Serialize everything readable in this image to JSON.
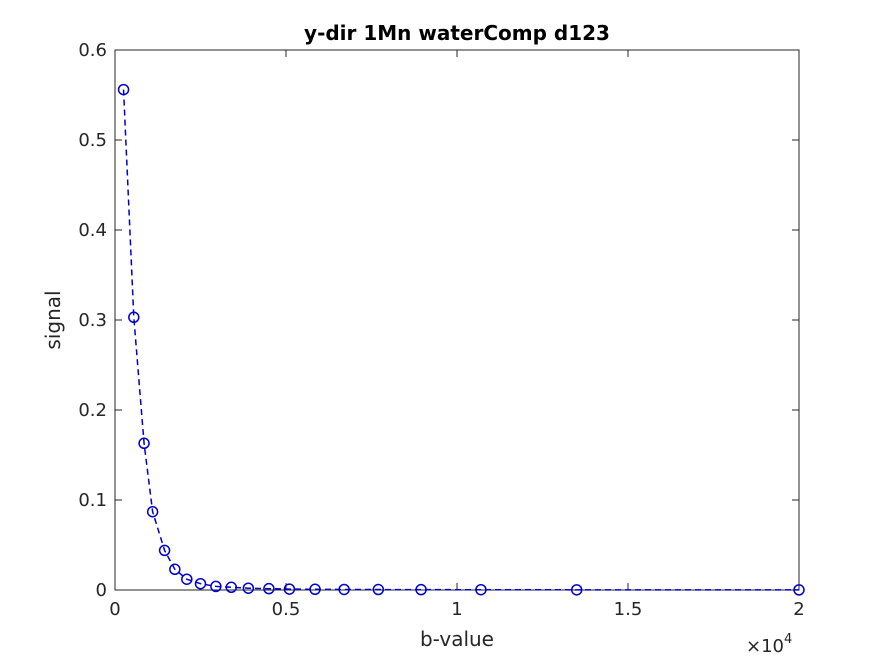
{
  "chart_data": {
    "type": "line",
    "title": "y-dir 1Mn waterComp d123",
    "xlabel": "b-value",
    "ylabel": "signal",
    "xlim": [
      0,
      20000
    ],
    "ylim": [
      0,
      0.6
    ],
    "x_exponent_label": "×10",
    "x_exponent_power": "4",
    "xticks": [
      0,
      5000,
      10000,
      15000,
      20000
    ],
    "xtick_labels": [
      "0",
      "0.5",
      "1",
      "1.5",
      "2"
    ],
    "yticks": [
      0,
      0.1,
      0.2,
      0.3,
      0.4,
      0.5,
      0.6
    ],
    "ytick_labels": [
      "0",
      "0.1",
      "0.2",
      "0.3",
      "0.4",
      "0.5",
      "0.6"
    ],
    "grid": false,
    "series": [
      {
        "color": "#0000CC",
        "marker": "circle",
        "linestyle": "dashed",
        "x": [
          250,
          550,
          850,
          1100,
          1450,
          1750,
          2100,
          2500,
          2950,
          3400,
          3900,
          4500,
          5100,
          5850,
          6700,
          7700,
          8950,
          10700,
          13500,
          20000
        ],
        "y": [
          0.556,
          0.303,
          0.163,
          0.087,
          0.044,
          0.023,
          0.012,
          0.007,
          0.004,
          0.003,
          0.002,
          0.0015,
          0.001,
          0.0008,
          0.0006,
          0.0005,
          0.0004,
          0.0003,
          0.0002,
          0.0001
        ]
      }
    ]
  }
}
